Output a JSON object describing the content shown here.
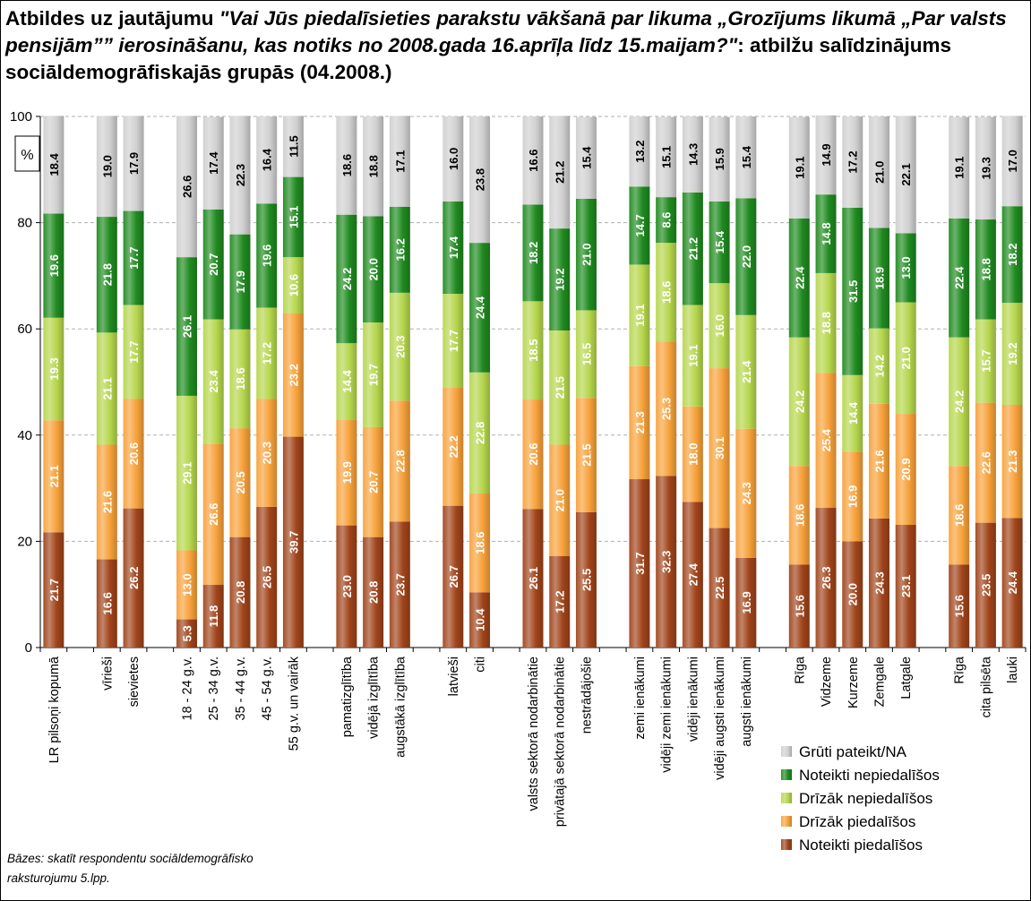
{
  "title": {
    "lead": "Atbildes uz jautājumu ",
    "question": "\"Vai Jūs piedalīsieties parakstu vākšanā par likuma „Grozījums likumā „Par valsts pensijām”” ierosināšanu, kas notiks no 2008.gada 16.aprīļa līdz 15.maijam?\"",
    "tail": ": atbilžu salīdzinājums sociāldemogrāfiskajās grupās (04.2008.)"
  },
  "note": {
    "line1": "Bāzes: skatīt respondentu sociāldemogrāfisko",
    "line2": "raksturojumu 5.lpp."
  },
  "chart_data": {
    "type": "bar",
    "stacked": true,
    "ylabel": "%",
    "ylim": [
      0,
      100
    ],
    "yticks": [
      0,
      20,
      40,
      60,
      80,
      100
    ],
    "grid": true,
    "legend_position": "bottom-right",
    "categories": [
      "LR pilsoņi kopumā",
      "vīrieši",
      "sievietes",
      "18 - 24 g.v.",
      "25 - 34 g.v.",
      "35 - 44 g.v.",
      "45 - 54 g.v.",
      "55 g.v. un vairāk",
      "pamatizglītība",
      "vidējā izglītība",
      "augstākā izglītība",
      "latvieši",
      "citi",
      "valsts sektorā nodarbinātie",
      "privātajā sektorā nodarbinātie",
      "nestrādājošie",
      "zemi ienākumi",
      "vidēji zemi ienākumi",
      "vidēji ienākumi",
      "vidēji augsti ienākumi",
      "augsti ienākumi",
      "Rīga",
      "Vidzeme",
      "Kurzeme",
      "Zemgale",
      "Latgale",
      "Rīga",
      "cita pilsēta",
      "lauki"
    ],
    "groups": [
      1,
      2,
      5,
      3,
      2,
      3,
      5,
      5,
      3
    ],
    "series": [
      {
        "name": "Noteikti piedalīšos",
        "color": "#a0441a",
        "values": [
          21.7,
          16.6,
          26.2,
          5.3,
          11.8,
          20.8,
          26.5,
          39.7,
          23.0,
          20.8,
          23.7,
          26.7,
          10.4,
          26.1,
          17.2,
          25.5,
          31.7,
          32.3,
          27.4,
          22.5,
          16.9,
          15.6,
          26.3,
          20.0,
          24.3,
          23.1,
          15.6,
          23.5,
          24.4
        ]
      },
      {
        "name": "Drīzāk piedalīšos",
        "color": "#f7a13a",
        "values": [
          21.1,
          21.6,
          20.6,
          13.0,
          26.6,
          20.5,
          20.3,
          23.2,
          19.9,
          20.7,
          22.8,
          22.2,
          18.6,
          20.6,
          21.0,
          21.5,
          21.3,
          25.3,
          18.0,
          30.1,
          24.3,
          18.6,
          25.4,
          16.9,
          21.6,
          20.9,
          18.6,
          22.6,
          21.3
        ]
      },
      {
        "name": "Drīzāk nepiedalīšos",
        "color": "#b5d64c",
        "values": [
          19.3,
          21.1,
          17.7,
          29.1,
          23.4,
          18.6,
          17.2,
          10.6,
          14.4,
          19.7,
          20.3,
          17.7,
          22.8,
          18.5,
          21.5,
          16.5,
          19.1,
          18.6,
          19.1,
          16.0,
          21.4,
          24.2,
          18.8,
          14.4,
          14.2,
          21.0,
          24.2,
          15.7,
          19.2
        ]
      },
      {
        "name": "Noteikti nepiedalīšos",
        "color": "#1f8a1f",
        "values": [
          19.6,
          21.8,
          17.7,
          26.1,
          20.7,
          17.9,
          19.6,
          15.1,
          24.2,
          20.0,
          16.2,
          17.4,
          24.4,
          18.2,
          19.2,
          21.0,
          14.7,
          8.6,
          21.2,
          15.4,
          22.0,
          22.4,
          14.8,
          31.5,
          18.9,
          13.0,
          22.4,
          18.8,
          18.2
        ]
      },
      {
        "name": "Grūti pateikt/NA",
        "color": "#d0d0d0",
        "values": [
          18.4,
          19.0,
          17.9,
          26.6,
          17.4,
          22.3,
          16.4,
          11.5,
          18.6,
          18.8,
          17.1,
          16.0,
          23.8,
          16.6,
          21.2,
          15.4,
          13.2,
          15.1,
          14.3,
          15.9,
          15.4,
          19.1,
          14.9,
          17.2,
          21.0,
          22.1,
          19.1,
          19.3,
          17.0
        ]
      }
    ]
  }
}
